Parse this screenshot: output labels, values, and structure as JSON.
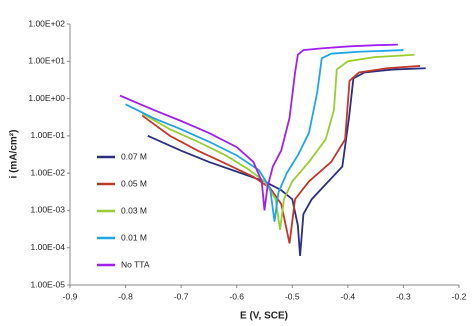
{
  "chart_data": {
    "type": "line",
    "xlabel": "E (V, SCE)",
    "ylabel": "i (mA/cm²)",
    "yscale": "log",
    "legend": "lower left",
    "grid": false,
    "xlim": [
      -0.9,
      -0.2
    ],
    "xticks": [
      -0.9,
      -0.8,
      -0.7,
      -0.6,
      -0.5,
      -0.4,
      -0.3,
      -0.2
    ],
    "ylim": [
      1e-05,
      100
    ],
    "yticks": [
      {
        "value": 1e-05,
        "label": "1.00E-05"
      },
      {
        "value": 0.0001,
        "label": "1.00E-04"
      },
      {
        "value": 0.001,
        "label": "1.00E-03"
      },
      {
        "value": 0.01,
        "label": "1.00E-02"
      },
      {
        "value": 0.1,
        "label": "1.00E-01"
      },
      {
        "value": 1,
        "label": "1.00E+00"
      },
      {
        "value": 10,
        "label": "1.00E+01"
      },
      {
        "value": 100,
        "label": "1.00E+02"
      }
    ],
    "series": [
      {
        "name": "0.07 M",
        "color": "#2e2f80",
        "x": [
          -0.76,
          -0.7,
          -0.65,
          -0.6,
          -0.55,
          -0.52,
          -0.5,
          -0.49,
          -0.486,
          -0.48,
          -0.465,
          -0.44,
          -0.41,
          -0.398,
          -0.39,
          -0.37,
          -0.32,
          -0.26
        ],
        "values": [
          0.1,
          0.04,
          0.02,
          0.011,
          0.006,
          0.0035,
          0.002,
          0.0004,
          6e-05,
          0.0008,
          0.002,
          0.005,
          0.015,
          0.3,
          3.5,
          5,
          6,
          6.5
        ]
      },
      {
        "name": "0.05 M",
        "color": "#c0392b",
        "x": [
          -0.77,
          -0.72,
          -0.67,
          -0.62,
          -0.57,
          -0.54,
          -0.52,
          -0.51,
          -0.505,
          -0.495,
          -0.47,
          -0.43,
          -0.405,
          -0.397,
          -0.38,
          -0.33,
          -0.27
        ],
        "values": [
          0.35,
          0.1,
          0.04,
          0.018,
          0.008,
          0.004,
          0.0015,
          0.0003,
          0.00013,
          0.002,
          0.006,
          0.02,
          0.08,
          3,
          5,
          6.5,
          7.5
        ]
      },
      {
        "name": "0.03 M",
        "color": "#9acd32",
        "x": [
          -0.77,
          -0.72,
          -0.67,
          -0.62,
          -0.58,
          -0.55,
          -0.53,
          -0.522,
          -0.515,
          -0.5,
          -0.47,
          -0.44,
          -0.425,
          -0.42,
          -0.4,
          -0.35,
          -0.28
        ],
        "values": [
          0.4,
          0.15,
          0.07,
          0.03,
          0.013,
          0.006,
          0.002,
          0.0003,
          0.002,
          0.006,
          0.02,
          0.08,
          0.5,
          6,
          10,
          13,
          15
        ]
      },
      {
        "name": "0.01 M",
        "color": "#1fa5e8",
        "x": [
          -0.8,
          -0.75,
          -0.7,
          -0.65,
          -0.6,
          -0.56,
          -0.54,
          -0.532,
          -0.525,
          -0.51,
          -0.49,
          -0.47,
          -0.455,
          -0.447,
          -0.43,
          -0.38,
          -0.3
        ],
        "values": [
          0.7,
          0.3,
          0.15,
          0.07,
          0.03,
          0.012,
          0.004,
          0.0005,
          0.003,
          0.01,
          0.03,
          0.12,
          1.5,
          12,
          16,
          18,
          20
        ]
      },
      {
        "name": "No TTA",
        "color": "#a020f0",
        "x": [
          -0.81,
          -0.75,
          -0.7,
          -0.65,
          -0.6,
          -0.57,
          -0.555,
          -0.55,
          -0.545,
          -0.535,
          -0.52,
          -0.505,
          -0.495,
          -0.49,
          -0.48,
          -0.45,
          -0.4,
          -0.35,
          -0.31
        ],
        "values": [
          1.2,
          0.5,
          0.25,
          0.12,
          0.05,
          0.02,
          0.006,
          0.001,
          0.004,
          0.015,
          0.04,
          0.3,
          5,
          15,
          20,
          22,
          25,
          27,
          28
        ]
      }
    ]
  }
}
